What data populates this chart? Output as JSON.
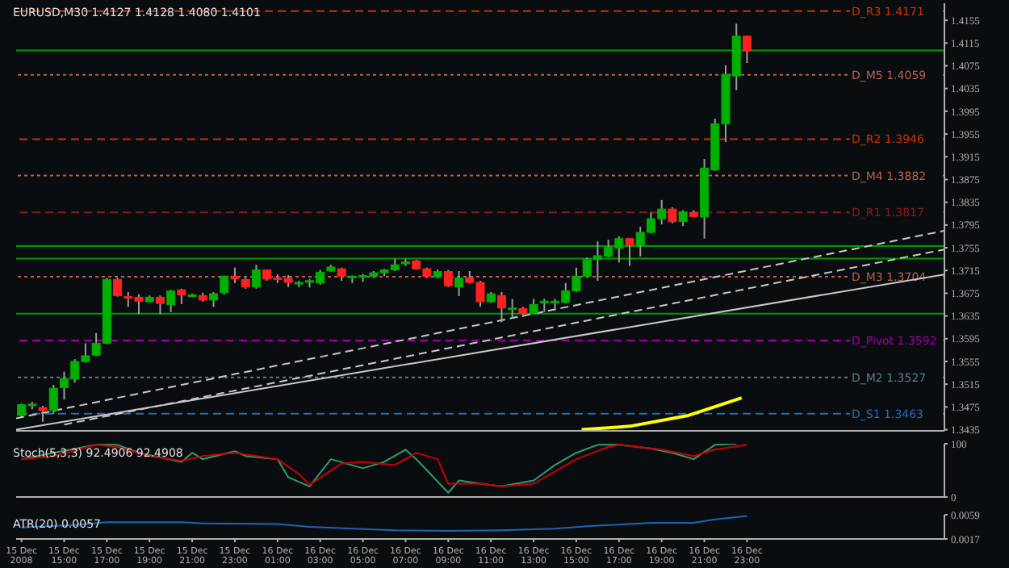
{
  "chart_data": [
    {
      "type": "candlestick",
      "title": "EURUSD,M30  1.4127 1.4128 1.4080 1.4101",
      "tick_labels": "y",
      "x": [
        "2008-12-15T13:00",
        "2008-12-15T13:30",
        "2008-12-15T14:00",
        "2008-12-15T14:30",
        "2008-12-15T15:00",
        "2008-12-15T15:30",
        "2008-12-15T16:00",
        "2008-12-15T16:30",
        "2008-12-15T17:00",
        "2008-12-15T17:30",
        "2008-12-15T18:00",
        "2008-12-15T18:30",
        "2008-12-15T19:00",
        "2008-12-15T19:30",
        "2008-12-15T20:00",
        "2008-12-15T20:30",
        "2008-12-15T21:00",
        "2008-12-15T21:30",
        "2008-12-15T22:00",
        "2008-12-15T22:30",
        "2008-12-15T23:00",
        "2008-12-15T23:30",
        "2008-12-16T00:00",
        "2008-12-16T00:30",
        "2008-12-16T01:00",
        "2008-12-16T01:30",
        "2008-12-16T02:00",
        "2008-12-16T02:30",
        "2008-12-16T03:00",
        "2008-12-16T03:30",
        "2008-12-16T04:00",
        "2008-12-16T04:30",
        "2008-12-16T05:00",
        "2008-12-16T05:30",
        "2008-12-16T06:00",
        "2008-12-16T06:30",
        "2008-12-16T07:00",
        "2008-12-16T07:30",
        "2008-12-16T08:00",
        "2008-12-16T08:30",
        "2008-12-16T09:00",
        "2008-12-16T09:30",
        "2008-12-16T10:00",
        "2008-12-16T10:30",
        "2008-12-16T11:00",
        "2008-12-16T11:30",
        "2008-12-16T12:00",
        "2008-12-16T12:30",
        "2008-12-16T13:00",
        "2008-12-16T13:30",
        "2008-12-16T14:00",
        "2008-12-16T14:30",
        "2008-12-16T15:00",
        "2008-12-16T15:30",
        "2008-12-16T16:00",
        "2008-12-16T16:30",
        "2008-12-16T17:00",
        "2008-12-16T17:30",
        "2008-12-16T18:00",
        "2008-12-16T18:30",
        "2008-12-16T19:00",
        "2008-12-16T19:30",
        "2008-12-16T20:00",
        "2008-12-16T20:30",
        "2008-12-16T21:00",
        "2008-12-16T21:30",
        "2008-12-16T22:00",
        "2008-12-16T22:30",
        "2008-12-16T23:00"
      ],
      "ohlc": [
        [
          1.346,
          1.3481,
          1.3458,
          1.3479
        ],
        [
          1.3479,
          1.3484,
          1.3471,
          1.348
        ],
        [
          1.3474,
          1.3477,
          1.3449,
          1.3469
        ],
        [
          1.3469,
          1.3514,
          1.3463,
          1.3508
        ],
        [
          1.3509,
          1.3537,
          1.3488,
          1.3525
        ],
        [
          1.3524,
          1.3559,
          1.3518,
          1.3555
        ],
        [
          1.3555,
          1.3587,
          1.3553,
          1.3565
        ],
        [
          1.3566,
          1.3605,
          1.3564,
          1.3587
        ],
        [
          1.3587,
          1.3702,
          1.3585,
          1.3699
        ],
        [
          1.3699,
          1.3702,
          1.3669,
          1.3671
        ],
        [
          1.3669,
          1.3677,
          1.3651,
          1.3667
        ],
        [
          1.3668,
          1.3673,
          1.3638,
          1.3661
        ],
        [
          1.366,
          1.3671,
          1.3659,
          1.3668
        ],
        [
          1.3668,
          1.3671,
          1.3638,
          1.3657
        ],
        [
          1.3655,
          1.3681,
          1.3642,
          1.3679
        ],
        [
          1.3681,
          1.3683,
          1.3656,
          1.3672
        ],
        [
          1.3671,
          1.3674,
          1.3669,
          1.3672
        ],
        [
          1.3671,
          1.3676,
          1.366,
          1.3663
        ],
        [
          1.3663,
          1.3677,
          1.3651,
          1.3674
        ],
        [
          1.3676,
          1.3706,
          1.3673,
          1.3705
        ],
        [
          1.3705,
          1.372,
          1.3693,
          1.37
        ],
        [
          1.3699,
          1.3702,
          1.3683,
          1.3686
        ],
        [
          1.3686,
          1.3725,
          1.3683,
          1.3716
        ],
        [
          1.3716,
          1.3717,
          1.3697,
          1.37
        ],
        [
          1.3702,
          1.3708,
          1.3693,
          1.3701
        ],
        [
          1.3701,
          1.3707,
          1.3686,
          1.3694
        ],
        [
          1.3693,
          1.3697,
          1.3686,
          1.3694
        ],
        [
          1.3696,
          1.37,
          1.3685,
          1.3697
        ],
        [
          1.3693,
          1.3716,
          1.369,
          1.3712
        ],
        [
          1.3714,
          1.3725,
          1.3713,
          1.3721
        ],
        [
          1.3718,
          1.372,
          1.3697,
          1.3705
        ],
        [
          1.3704,
          1.3706,
          1.3693,
          1.3705
        ],
        [
          1.3705,
          1.3709,
          1.3695,
          1.3706
        ],
        [
          1.3705,
          1.3714,
          1.3702,
          1.3711
        ],
        [
          1.3711,
          1.3718,
          1.3705,
          1.3716
        ],
        [
          1.3716,
          1.3736,
          1.3714,
          1.3725
        ],
        [
          1.3727,
          1.3736,
          1.3723,
          1.373
        ],
        [
          1.3732,
          1.3734,
          1.3716,
          1.3718
        ],
        [
          1.3718,
          1.372,
          1.3702,
          1.3705
        ],
        [
          1.3704,
          1.3717,
          1.3701,
          1.3713
        ],
        [
          1.3713,
          1.3716,
          1.3686,
          1.3688
        ],
        [
          1.3686,
          1.3714,
          1.367,
          1.3702
        ],
        [
          1.3702,
          1.3714,
          1.3692,
          1.3694
        ],
        [
          1.3694,
          1.3697,
          1.3651,
          1.366
        ],
        [
          1.366,
          1.3677,
          1.3658,
          1.3674
        ],
        [
          1.3671,
          1.3677,
          1.3624,
          1.3649
        ],
        [
          1.3648,
          1.3665,
          1.3631,
          1.3649
        ],
        [
          1.3648,
          1.3651,
          1.3633,
          1.3639
        ],
        [
          1.364,
          1.3665,
          1.3638,
          1.3655
        ],
        [
          1.366,
          1.3665,
          1.3642,
          1.3661
        ],
        [
          1.366,
          1.3665,
          1.3644,
          1.3661
        ],
        [
          1.3659,
          1.3693,
          1.3657,
          1.3679
        ],
        [
          1.3679,
          1.372,
          1.3677,
          1.3705
        ],
        [
          1.3705,
          1.3738,
          1.3702,
          1.3734
        ],
        [
          1.3734,
          1.3766,
          1.3697,
          1.3741
        ],
        [
          1.374,
          1.3769,
          1.3738,
          1.3756
        ],
        [
          1.3754,
          1.3775,
          1.3729,
          1.3771
        ],
        [
          1.3771,
          1.3772,
          1.3723,
          1.376
        ],
        [
          1.376,
          1.3792,
          1.374,
          1.3782
        ],
        [
          1.3782,
          1.3818,
          1.378,
          1.3806
        ],
        [
          1.3806,
          1.3839,
          1.3796,
          1.3823
        ],
        [
          1.3823,
          1.3826,
          1.3798,
          1.3801
        ],
        [
          1.3801,
          1.3821,
          1.3793,
          1.3818
        ],
        [
          1.3817,
          1.3821,
          1.3809,
          1.381
        ],
        [
          1.3809,
          1.3911,
          1.3771,
          1.3895
        ],
        [
          1.3892,
          1.3982,
          1.389,
          1.3973
        ],
        [
          1.3973,
          1.4076,
          1.3941,
          1.406
        ],
        [
          1.4057,
          1.4149,
          1.4032,
          1.4127
        ],
        [
          1.4127,
          1.4128,
          1.408,
          1.4101
        ]
      ],
      "series": [
        {
          "type": "line",
          "color": "#c8c8c8",
          "line_style": "dashed",
          "x": [
            "2008-12-15T12:45",
            "2008-12-17T08:15"
          ],
          "values": [
            1.3455,
            1.3785
          ]
        },
        {
          "type": "line",
          "color": "#c8c8c8",
          "line_style": "dashed",
          "x": [
            "2008-12-15T15:00",
            "2008-12-17T08:15"
          ],
          "values": [
            1.3444,
            1.3752
          ]
        },
        {
          "type": "line",
          "color": "#c8c8c8",
          "line_style": "solid",
          "x": [
            "2008-12-15T12:45",
            "2008-12-17T08:15"
          ],
          "values": [
            1.3435,
            1.3708
          ]
        },
        {
          "type": "line",
          "color": "#ffff00",
          "line_style": "solid",
          "x": [
            "2008-12-16T15:15",
            "2008-12-16T17:30",
            "2008-12-16T20:15",
            "2008-12-16T22:45"
          ],
          "values": [
            1.3435,
            1.3441,
            1.346,
            1.3491
          ]
        }
      ],
      "ref_lines": [
        {
          "axis": "y",
          "value": 1.4171,
          "label": "D_R3 1.4171",
          "color": "#cc3300",
          "line_style": "dashed"
        },
        {
          "axis": "y",
          "value": 1.4102,
          "color": "#009900",
          "line_style": "solid"
        },
        {
          "axis": "y",
          "value": 1.4059,
          "label": "D_M5 1.4059",
          "color": "#b8604c",
          "line_style": "dotted"
        },
        {
          "axis": "y",
          "value": 1.3946,
          "label": "D_R2 1.3946",
          "color": "#cc3300",
          "line_style": "dashed"
        },
        {
          "axis": "y",
          "value": 1.3882,
          "label": "D_M4 1.3882",
          "color": "#b8604c",
          "line_style": "dotted"
        },
        {
          "axis": "y",
          "value": 1.3817,
          "label": "D_R1 1.3817",
          "color": "#8b1a1a",
          "line_style": "dashed"
        },
        {
          "axis": "y",
          "value": 1.3758,
          "color": "#009900",
          "line_style": "solid"
        },
        {
          "axis": "y",
          "value": 1.3736,
          "color": "#009900",
          "line_style": "solid"
        },
        {
          "axis": "y",
          "value": 1.3704,
          "label": "D_M3 1.3704",
          "color": "#b8604c",
          "line_style": "dotted"
        },
        {
          "axis": "y",
          "value": 1.3639,
          "color": "#009900",
          "line_style": "solid"
        },
        {
          "axis": "y",
          "value": 1.3592,
          "label": "D_Pivot 1.3592",
          "color": "#a000a0",
          "line_style": "dashed"
        },
        {
          "axis": "y",
          "value": 1.3527,
          "label": "D_M2 1.3527",
          "color": "#5a7a8a",
          "line_style": "dotted"
        },
        {
          "axis": "y",
          "value": 1.3463,
          "label": "D_S1 1.3463",
          "color": "#2a6ab0",
          "line_style": "dashed"
        }
      ],
      "xlim": [
        "2008-12-15T12:45",
        "2008-12-17T08:15"
      ],
      "xticks": [
        {
          "value": "2008-12-15T13:00",
          "label": null
        },
        {
          "value": "2008-12-15T15:00",
          "label": null
        },
        {
          "value": "2008-12-15T17:00",
          "label": null
        },
        {
          "value": "2008-12-15T19:00",
          "label": null
        },
        {
          "value": "2008-12-15T21:00",
          "label": null
        },
        {
          "value": "2008-12-15T23:00",
          "label": null
        },
        {
          "value": "2008-12-16T01:00",
          "label": null
        },
        {
          "value": "2008-12-16T03:00",
          "label": null
        },
        {
          "value": "2008-12-16T05:00",
          "label": null
        },
        {
          "value": "2008-12-16T07:00",
          "label": null
        },
        {
          "value": "2008-12-16T09:00",
          "label": null
        },
        {
          "value": "2008-12-16T11:00",
          "label": null
        },
        {
          "value": "2008-12-16T13:00",
          "label": null
        },
        {
          "value": "2008-12-16T15:00",
          "label": null
        },
        {
          "value": "2008-12-16T17:00",
          "label": null
        },
        {
          "value": "2008-12-16T19:00",
          "label": null
        },
        {
          "value": "2008-12-16T21:00",
          "label": null
        },
        {
          "value": "2008-12-16T23:00",
          "label": null
        }
      ],
      "ylim": [
        1.3433,
        1.4185
      ],
      "yticks": [
        1.3435,
        1.3475,
        1.3515,
        1.3555,
        1.3595,
        1.3635,
        1.3675,
        1.3715,
        1.3755,
        1.3795,
        1.3835,
        1.3875,
        1.3915,
        1.3955,
        1.3995,
        1.4035,
        1.4075,
        1.4115,
        1.4155
      ]
    },
    {
      "type": "line",
      "title": "Stoch(5,3,3) 92.4906 92.4908",
      "tick_labels": "y",
      "series": [
        {
          "color": "#2e9e6e",
          "x": [
            "2008-12-15T13:00",
            "2008-12-15T14:30",
            "2008-12-15T16:30",
            "2008-12-15T17:30",
            "2008-12-15T18:30",
            "2008-12-15T20:30",
            "2008-12-15T21:00",
            "2008-12-15T21:30",
            "2008-12-15T23:00",
            "2008-12-15T23:30",
            "2008-12-16T01:00",
            "2008-12-16T01:30",
            "2008-12-16T02:30",
            "2008-12-16T03:30",
            "2008-12-16T05:00",
            "2008-12-16T06:00",
            "2008-12-16T07:00",
            "2008-12-16T07:30",
            "2008-12-16T09:00",
            "2008-12-16T09:30",
            "2008-12-16T10:30",
            "2008-12-16T11:30",
            "2008-12-16T13:00",
            "2008-12-16T14:00",
            "2008-12-16T15:00",
            "2008-12-16T16:00",
            "2008-12-16T17:00",
            "2008-12-16T18:30",
            "2008-12-16T19:30",
            "2008-12-16T20:30",
            "2008-12-16T21:30",
            "2008-12-16T22:30"
          ],
          "values": [
            71,
            83,
            98,
            98,
            83,
            66,
            83,
            71,
            86,
            77,
            71,
            37,
            20,
            71,
            54,
            66,
            89,
            71,
            8,
            31,
            25,
            20,
            31,
            60,
            83,
            98,
            98,
            91,
            83,
            71,
            98,
            100
          ]
        },
        {
          "color": "#cc0000",
          "x": [
            "2008-12-15T13:00",
            "2008-12-15T14:30",
            "2008-12-15T16:30",
            "2008-12-15T17:30",
            "2008-12-15T19:00",
            "2008-12-15T20:30",
            "2008-12-15T21:30",
            "2008-12-15T23:00",
            "2008-12-16T01:00",
            "2008-12-16T02:00",
            "2008-12-16T02:30",
            "2008-12-16T04:00",
            "2008-12-16T05:00",
            "2008-12-16T06:30",
            "2008-12-16T07:30",
            "2008-12-16T08:30",
            "2008-12-16T09:00",
            "2008-12-16T10:30",
            "2008-12-16T11:30",
            "2008-12-16T13:00",
            "2008-12-16T14:00",
            "2008-12-16T15:00",
            "2008-12-16T16:30",
            "2008-12-16T17:00",
            "2008-12-16T19:00",
            "2008-12-16T20:30",
            "2008-12-16T21:30",
            "2008-12-16T23:00"
          ],
          "values": [
            71,
            77,
            98,
            94,
            77,
            68,
            77,
            83,
            71,
            43,
            23,
            63,
            66,
            60,
            83,
            71,
            25,
            25,
            20,
            25,
            48,
            71,
            94,
            98,
            89,
            77,
            89,
            98
          ]
        }
      ],
      "xlim": [
        "2008-12-15T12:45",
        "2008-12-17T08:15"
      ],
      "xticks": [
        {
          "value": "2008-12-15T13:00",
          "label": null
        },
        {
          "value": "2008-12-15T15:00",
          "label": null
        },
        {
          "value": "2008-12-15T17:00",
          "label": null
        },
        {
          "value": "2008-12-15T19:00",
          "label": null
        },
        {
          "value": "2008-12-15T21:00",
          "label": null
        },
        {
          "value": "2008-12-15T23:00",
          "label": null
        },
        {
          "value": "2008-12-16T01:00",
          "label": null
        },
        {
          "value": "2008-12-16T03:00",
          "label": null
        },
        {
          "value": "2008-12-16T05:00",
          "label": null
        },
        {
          "value": "2008-12-16T07:00",
          "label": null
        },
        {
          "value": "2008-12-16T09:00",
          "label": null
        },
        {
          "value": "2008-12-16T11:00",
          "label": null
        },
        {
          "value": "2008-12-16T13:00",
          "label": null
        },
        {
          "value": "2008-12-16T15:00",
          "label": null
        },
        {
          "value": "2008-12-16T17:00",
          "label": null
        },
        {
          "value": "2008-12-16T19:00",
          "label": null
        },
        {
          "value": "2008-12-16T21:00",
          "label": null
        },
        {
          "value": "2008-12-16T23:00",
          "label": null
        }
      ],
      "ylim": [
        0,
        100
      ],
      "yticks": [
        0,
        100
      ]
    },
    {
      "type": "line",
      "title": "ATR(20) 0.0057",
      "series": [
        {
          "color": "#1e64b4",
          "x": [
            "2008-12-15T13:00",
            "2008-12-15T15:30",
            "2008-12-15T17:00",
            "2008-12-15T20:30",
            "2008-12-15T21:30",
            "2008-12-16T01:00",
            "2008-12-16T02:30",
            "2008-12-16T05:00",
            "2008-12-16T06:30",
            "2008-12-16T09:00",
            "2008-12-16T11:30",
            "2008-12-16T14:00",
            "2008-12-16T15:30",
            "2008-12-16T18:30",
            "2008-12-16T20:30",
            "2008-12-16T21:30",
            "2008-12-16T23:00"
          ],
          "values": [
            0.0037,
            0.0041,
            0.0046,
            0.0046,
            0.0044,
            0.0043,
            0.0038,
            0.0034,
            0.0032,
            0.0031,
            0.0032,
            0.0035,
            0.0039,
            0.0045,
            0.0045,
            0.0051,
            0.0057
          ]
        }
      ],
      "xlim": [
        "2008-12-15T12:45",
        "2008-12-17T08:15"
      ],
      "xticks": [
        {
          "value": "2008-12-15T13:00",
          "label": "15 Dec 2008"
        },
        {
          "value": "2008-12-15T15:00",
          "label": "15 Dec 15:00"
        },
        {
          "value": "2008-12-15T17:00",
          "label": "15 Dec 17:00"
        },
        {
          "value": "2008-12-15T19:00",
          "label": "15 Dec 19:00"
        },
        {
          "value": "2008-12-15T21:00",
          "label": "15 Dec 21:00"
        },
        {
          "value": "2008-12-15T23:00",
          "label": "15 Dec 23:00"
        },
        {
          "value": "2008-12-16T01:00",
          "label": "16 Dec 01:00"
        },
        {
          "value": "2008-12-16T03:00",
          "label": "16 Dec 03:00"
        },
        {
          "value": "2008-12-16T05:00",
          "label": "16 Dec 05:00"
        },
        {
          "value": "2008-12-16T07:00",
          "label": "16 Dec 07:00"
        },
        {
          "value": "2008-12-16T09:00",
          "label": "16 Dec 09:00"
        },
        {
          "value": "2008-12-16T11:00",
          "label": "16 Dec 11:00"
        },
        {
          "value": "2008-12-16T13:00",
          "label": "16 Dec 13:00"
        },
        {
          "value": "2008-12-16T15:00",
          "label": "16 Dec 15:00"
        },
        {
          "value": "2008-12-16T17:00",
          "label": "16 Dec 17:00"
        },
        {
          "value": "2008-12-16T19:00",
          "label": "16 Dec 19:00"
        },
        {
          "value": "2008-12-16T21:00",
          "label": "16 Dec 21:00"
        },
        {
          "value": "2008-12-16T23:00",
          "label": "16 Dec 23:00"
        }
      ],
      "ylim": [
        0.0017,
        0.0059
      ],
      "yticks": [
        0.0017,
        0.0059
      ]
    }
  ]
}
